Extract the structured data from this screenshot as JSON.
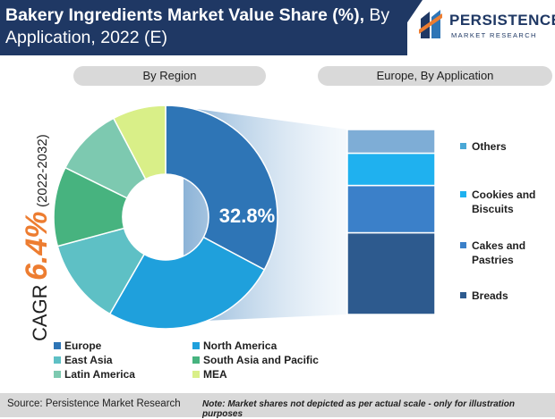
{
  "header": {
    "title_bold": "Bakery Ingredients Market Value Share (%),",
    "title_regular": " By Application, 2022 (E)",
    "logo_name": "PERSISTENCE",
    "logo_sub": "MARKET RESEARCH"
  },
  "left_pill": "By Region",
  "right_pill": "Europe, By Application",
  "cagr": {
    "word": "CAGR",
    "value": "6.4%",
    "period": "(2022-2032)"
  },
  "chart_data": [
    {
      "type": "pie",
      "title": "By Region",
      "categories": [
        "Europe",
        "North America",
        "East Asia",
        "South Asia and Pacific",
        "Latin America",
        "MEA"
      ],
      "values": [
        32.8,
        25.5,
        12.5,
        11.5,
        10.0,
        7.7
      ],
      "highlight_label": "32.8%",
      "colors": [
        "#2e75b6",
        "#1fa0dc",
        "#5ec0c5",
        "#47b37f",
        "#7dc9b0",
        "#d9ef88"
      ],
      "donut": true
    },
    {
      "type": "bar",
      "stacked": true,
      "title": "Europe, By Application",
      "categories": [
        "Breads",
        "Cakes and Pastries",
        "Cookies and Biscuits",
        "Others"
      ],
      "values": [
        38,
        22,
        15,
        11
      ],
      "colors": [
        "#2d5a8e",
        "#3b80c9",
        "#1fb1ef",
        "#7eadd6"
      ]
    }
  ],
  "legend": [
    {
      "label": "Europe",
      "color": "#2e75b6"
    },
    {
      "label": "North America",
      "color": "#1fa0dc"
    },
    {
      "label": "East Asia",
      "color": "#5ec0c5"
    },
    {
      "label": "South Asia and Pacific",
      "color": "#47b37f"
    },
    {
      "label": "Latin America",
      "color": "#7dc9b0"
    },
    {
      "label": "MEA",
      "color": "#d9ef88"
    }
  ],
  "side_legend": [
    {
      "label": "Others",
      "color": "#4aa8d6"
    },
    {
      "label": "Cookies and Biscuits",
      "color": "#1fb1ef"
    },
    {
      "label": "Cakes and Pastries",
      "color": "#3b80c9"
    },
    {
      "label": "Breads",
      "color": "#2d5a8e"
    }
  ],
  "footer": {
    "source": "Source: Persistence Market Research",
    "note": "Note: Market shares not depicted as per actual scale - only for illustration purposes"
  },
  "theme": {
    "navy": "#1f3864",
    "accent": "#ed7d31",
    "grey": "#d9d9d9"
  }
}
